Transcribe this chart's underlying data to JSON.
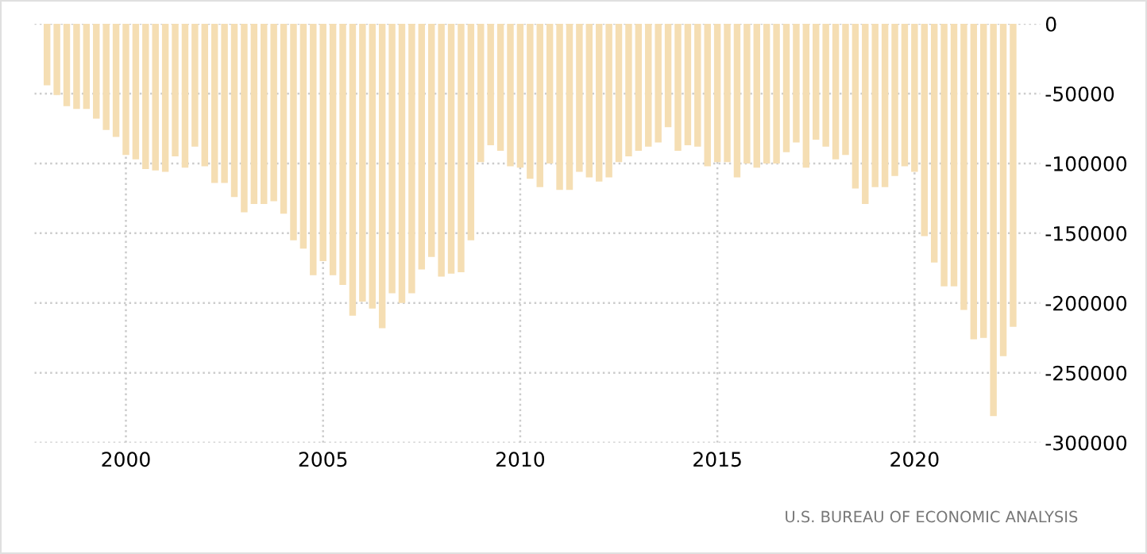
{
  "chart_data": {
    "type": "bar",
    "color": "#f5deb3",
    "x": [
      1998.0,
      1998.25,
      1998.5,
      1998.75,
      1999.0,
      1999.25,
      1999.5,
      1999.75,
      2000.0,
      2000.25,
      2000.5,
      2000.75,
      2001.0,
      2001.25,
      2001.5,
      2001.75,
      2002.0,
      2002.25,
      2002.5,
      2002.75,
      2003.0,
      2003.25,
      2003.5,
      2003.75,
      2004.0,
      2004.25,
      2004.5,
      2004.75,
      2005.0,
      2005.25,
      2005.5,
      2005.75,
      2006.0,
      2006.25,
      2006.5,
      2006.75,
      2007.0,
      2007.25,
      2007.5,
      2007.75,
      2008.0,
      2008.25,
      2008.5,
      2008.75,
      2009.0,
      2009.25,
      2009.5,
      2009.75,
      2010.0,
      2010.25,
      2010.5,
      2010.75,
      2011.0,
      2011.25,
      2011.5,
      2011.75,
      2012.0,
      2012.25,
      2012.5,
      2012.75,
      2013.0,
      2013.25,
      2013.5,
      2013.75,
      2014.0,
      2014.25,
      2014.5,
      2014.75,
      2015.0,
      2015.25,
      2015.5,
      2015.75,
      2016.0,
      2016.25,
      2016.5,
      2016.75,
      2017.0,
      2017.25,
      2017.5,
      2017.75,
      2018.0,
      2018.25,
      2018.5,
      2018.75,
      2019.0,
      2019.25,
      2019.5,
      2019.75,
      2020.0,
      2020.25,
      2020.5,
      2020.75,
      2021.0,
      2021.25,
      2021.5,
      2021.75,
      2022.0,
      2022.25,
      2022.5
    ],
    "values": [
      -44000,
      -51000,
      -59000,
      -61000,
      -61000,
      -68000,
      -76000,
      -81000,
      -94000,
      -97000,
      -104000,
      -105000,
      -106000,
      -95000,
      -103000,
      -88000,
      -102000,
      -114000,
      -114000,
      -124000,
      -135000,
      -129000,
      -129000,
      -127000,
      -136000,
      -155000,
      -161000,
      -180000,
      -170000,
      -180000,
      -187000,
      -209000,
      -199000,
      -204000,
      -218000,
      -193000,
      -200000,
      -193000,
      -176000,
      -167000,
      -181000,
      -179000,
      -178000,
      -155000,
      -99000,
      -87000,
      -91000,
      -102000,
      -103000,
      -111000,
      -117000,
      -100000,
      -119000,
      -119000,
      -106000,
      -110000,
      -113000,
      -110000,
      -99000,
      -95000,
      -91000,
      -88000,
      -85000,
      -74000,
      -91000,
      -87000,
      -88000,
      -102000,
      -99000,
      -99000,
      -110000,
      -100000,
      -103000,
      -100000,
      -100000,
      -92000,
      -85000,
      -103000,
      -83000,
      -88000,
      -97000,
      -94000,
      -118000,
      -129000,
      -117000,
      -117000,
      -109000,
      -102000,
      -106000,
      -152000,
      -171000,
      -188000,
      -188000,
      -205000,
      -226000,
      -225000,
      -281000,
      -238000,
      -217000
    ],
    "xlim": [
      1997.68,
      2023.19
    ],
    "xticks": [
      2000,
      2005,
      2010,
      2015,
      2020
    ],
    "ylim": [
      -300000,
      0
    ],
    "yticks": [
      0,
      -50000,
      -100000,
      -150000,
      -200000,
      -250000,
      -300000
    ],
    "grid": true,
    "annotations": [
      "U.S. BUREAU OF ECONOMIC ANALYSIS"
    ]
  }
}
